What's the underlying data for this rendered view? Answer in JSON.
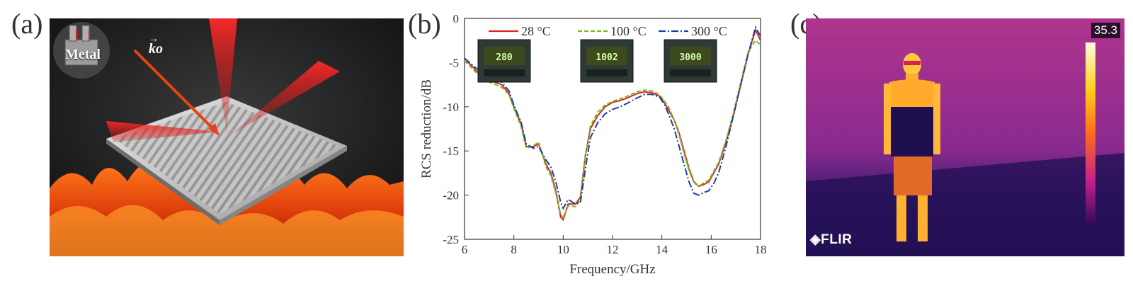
{
  "panels": {
    "a": {
      "label": "(a)",
      "metal_label": "Metal",
      "wave_vector_label": "ko"
    },
    "b": {
      "label": "(b)"
    },
    "c": {
      "label": "(c)",
      "max_temp_readout": "35.3",
      "brand": "FLIR"
    }
  },
  "colors": {
    "red": "#d62728",
    "green": "#7dbb1e",
    "blue": "#1f3f9e"
  },
  "chart_data": {
    "type": "line",
    "title": "",
    "xlabel": "Frequency/GHz",
    "ylabel": "RCS reduction/dB",
    "xlim": [
      6,
      18
    ],
    "ylim": [
      -25,
      0
    ],
    "xticks": [
      6,
      8,
      10,
      12,
      14,
      16,
      18
    ],
    "yticks": [
      0,
      -5,
      -10,
      -15,
      -20,
      -25
    ],
    "legend_position": "top",
    "series": [
      {
        "name": "28 °C",
        "color": "#d62728",
        "dash": "solid",
        "x": [
          6,
          6.5,
          7,
          7.5,
          7.8,
          8,
          8.3,
          8.5,
          8.8,
          9,
          9.3,
          9.5,
          9.7,
          9.9,
          10,
          10.2,
          10.5,
          10.7,
          10.9,
          11.1,
          11.4,
          11.7,
          12,
          12.3,
          12.6,
          13,
          13.3,
          13.6,
          13.9,
          14.1,
          14.3,
          14.5,
          14.7,
          14.9,
          15.1,
          15.3,
          15.5,
          15.7,
          15.9,
          16.1,
          16.3,
          16.6,
          16.9,
          17.2,
          17.5,
          17.8,
          18
        ],
        "y": [
          -4.5,
          -6,
          -7,
          -7.5,
          -8.5,
          -10,
          -12,
          -14.5,
          -14.5,
          -14.2,
          -16.5,
          -17.5,
          -19.5,
          -22.5,
          -22.8,
          -21,
          -21,
          -20.2,
          -15.5,
          -12.5,
          -11,
          -10,
          -9.5,
          -9.3,
          -9,
          -8.5,
          -8.3,
          -8.4,
          -8.8,
          -9.5,
          -10.5,
          -11.5,
          -13,
          -15,
          -17,
          -18.5,
          -19,
          -18.8,
          -18.5,
          -17.5,
          -16.5,
          -14,
          -11,
          -7.5,
          -4,
          -1.3,
          -2.5
        ]
      },
      {
        "name": "100 °C",
        "color": "#7dbb1e",
        "dash": "dashed",
        "x": [
          6,
          6.5,
          7,
          7.5,
          7.8,
          8,
          8.3,
          8.5,
          8.8,
          9,
          9.3,
          9.5,
          9.7,
          9.9,
          10,
          10.2,
          10.5,
          10.7,
          10.9,
          11.1,
          11.4,
          11.7,
          12,
          12.3,
          12.6,
          13,
          13.3,
          13.6,
          13.9,
          14.1,
          14.3,
          14.5,
          14.7,
          14.9,
          15.1,
          15.3,
          15.5,
          15.7,
          15.9,
          16.1,
          16.3,
          16.6,
          16.9,
          17.2,
          17.5,
          17.8,
          18
        ],
        "y": [
          -4.8,
          -6.2,
          -7.2,
          -7.8,
          -8.6,
          -10.2,
          -12.3,
          -14.7,
          -14.4,
          -14,
          -16.8,
          -17.8,
          -19.8,
          -22.2,
          -22.5,
          -21.2,
          -21.3,
          -20.5,
          -15.5,
          -12.2,
          -10.6,
          -9.8,
          -9.4,
          -9.1,
          -8.8,
          -8.3,
          -8.1,
          -8.2,
          -8.6,
          -9.3,
          -10.2,
          -11.5,
          -13.2,
          -15.3,
          -17.2,
          -18.6,
          -19,
          -18.6,
          -18.3,
          -17.3,
          -16.3,
          -13.8,
          -10.7,
          -7.2,
          -3.8,
          -2.5,
          -3
        ]
      },
      {
        "name": "300 °C",
        "color": "#1f3f9e",
        "dash": "dashdot",
        "x": [
          6,
          6.5,
          7,
          7.5,
          7.8,
          8,
          8.3,
          8.5,
          8.8,
          9,
          9.3,
          9.5,
          9.7,
          9.9,
          10,
          10.2,
          10.5,
          10.7,
          10.9,
          11.1,
          11.4,
          11.7,
          12,
          12.3,
          12.6,
          13,
          13.3,
          13.6,
          13.9,
          14.1,
          14.3,
          14.5,
          14.7,
          14.9,
          15.1,
          15.3,
          15.5,
          15.7,
          15.9,
          16.1,
          16.3,
          16.6,
          16.9,
          17.2,
          17.5,
          17.8,
          18
        ],
        "y": [
          -4.5,
          -5.7,
          -6.7,
          -7.2,
          -8.2,
          -9.8,
          -11.8,
          -14.2,
          -14.7,
          -14.5,
          -16,
          -16.8,
          -18.5,
          -20.8,
          -21.5,
          -20.5,
          -21,
          -20.8,
          -17,
          -13.5,
          -11.8,
          -10.8,
          -10.3,
          -10,
          -9.6,
          -9,
          -8.6,
          -8.6,
          -8.9,
          -9.7,
          -11,
          -12.5,
          -14.5,
          -16.5,
          -18.5,
          -19.8,
          -20,
          -19.7,
          -19.5,
          -18.7,
          -17.5,
          -14.5,
          -11,
          -7.5,
          -4,
          -1,
          -2
        ]
      }
    ],
    "inset_readouts": [
      "280",
      "1002",
      "3000"
    ]
  }
}
